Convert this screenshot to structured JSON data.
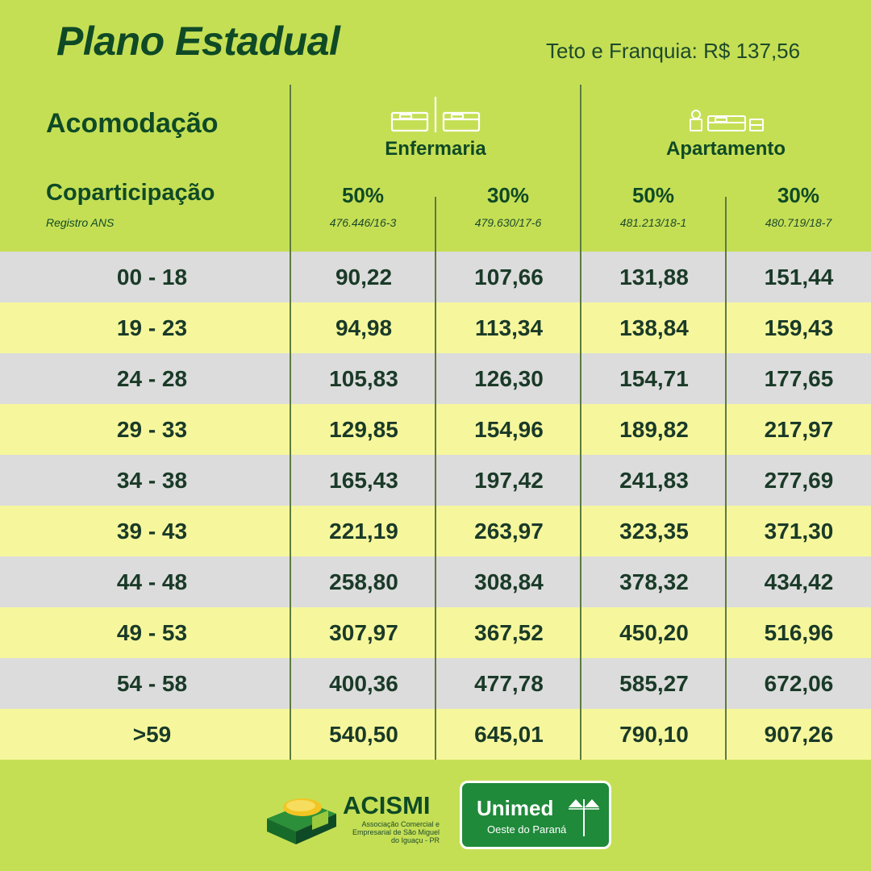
{
  "header": {
    "title": "Plano Estadual",
    "teto": "Teto e Franquia: R$ 137,56"
  },
  "table_header": {
    "acomodacao": "Acomodação",
    "coparticipacao": "Coparticipação",
    "registro": "Registro ANS",
    "groups": [
      {
        "label": "Enfermaria",
        "icon": "ward-beds-icon"
      },
      {
        "label": "Apartamento",
        "icon": "room-bed-icon"
      }
    ],
    "columns": [
      {
        "pct": "50%",
        "ans": "476.446/16-3"
      },
      {
        "pct": "30%",
        "ans": "479.630/17-6"
      },
      {
        "pct": "50%",
        "ans": "481.213/18-1"
      },
      {
        "pct": "30%",
        "ans": "480.719/18-7"
      }
    ]
  },
  "rows": [
    {
      "age": "00 - 18",
      "v": [
        "90,22",
        "107,66",
        "131,88",
        "151,44"
      ]
    },
    {
      "age": "19 - 23",
      "v": [
        "94,98",
        "113,34",
        "138,84",
        "159,43"
      ]
    },
    {
      "age": "24 - 28",
      "v": [
        "105,83",
        "126,30",
        "154,71",
        "177,65"
      ]
    },
    {
      "age": "29 - 33",
      "v": [
        "129,85",
        "154,96",
        "189,82",
        "217,97"
      ]
    },
    {
      "age": "34 - 38",
      "v": [
        "165,43",
        "197,42",
        "241,83",
        "277,69"
      ]
    },
    {
      "age": "39 - 43",
      "v": [
        "221,19",
        "263,97",
        "323,35",
        "371,30"
      ]
    },
    {
      "age": "44 - 48",
      "v": [
        "258,80",
        "308,84",
        "378,32",
        "434,42"
      ]
    },
    {
      "age": "49 - 53",
      "v": [
        "307,97",
        "367,52",
        "450,20",
        "516,96"
      ]
    },
    {
      "age": "54 - 58",
      "v": [
        "400,36",
        "477,78",
        "585,27",
        "672,06"
      ]
    },
    {
      "age": ">59",
      "v": [
        "540,50",
        "645,01",
        "790,10",
        "907,26"
      ]
    }
  ],
  "footer": {
    "acismi": {
      "name": "ACISMI",
      "sub": "Associação Comercial e Empresarial de São Miguel do Iguaçu - PR"
    },
    "unimed": {
      "name": "Unimed",
      "sub": "Oeste do Paraná"
    }
  },
  "colors": {
    "background": "#c5df55",
    "row_gray": "#dcdcdc",
    "row_yellow": "#f6f79c",
    "text_green": "#0f4a26",
    "unimed_green": "#1f8a3a"
  }
}
